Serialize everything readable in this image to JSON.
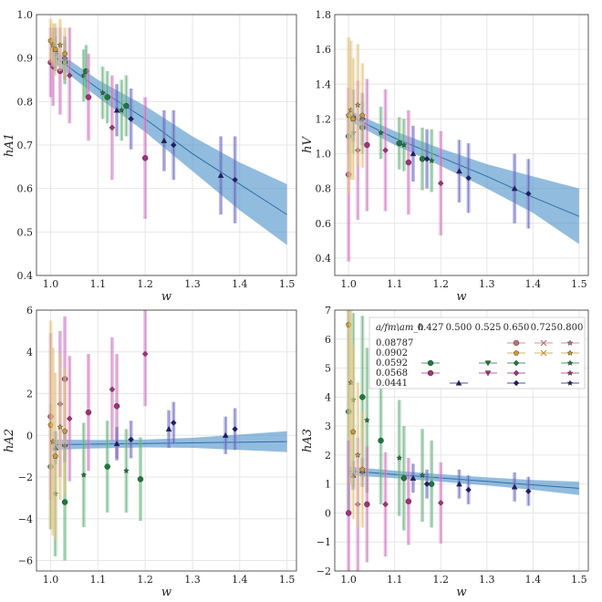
{
  "chart_data": [
    {
      "type": "scatter",
      "xlabel": "w",
      "ylabel": "hA1",
      "xlim": [
        0.97,
        1.52
      ],
      "ylim": [
        0.4,
        1.0
      ],
      "xticks": [
        "1.0",
        "1.1",
        "1.2",
        "1.3",
        "1.4",
        "1.5"
      ],
      "yticks": [
        "0.4",
        "0.5",
        "0.6",
        "0.7",
        "0.8",
        "0.9",
        "1.0"
      ],
      "band": {
        "x": [
          1.0,
          1.1,
          1.2,
          1.3,
          1.4,
          1.5
        ],
        "center": [
          0.91,
          0.83,
          0.76,
          0.68,
          0.61,
          0.54
        ],
        "lower": [
          0.895,
          0.81,
          0.73,
          0.64,
          0.55,
          0.47
        ],
        "upper": [
          0.925,
          0.85,
          0.79,
          0.72,
          0.66,
          0.61
        ]
      },
      "series": [
        {
          "name": "green",
          "color": "#1a7a3a",
          "x": [
            1.005,
            1.01,
            1.03,
            1.07,
            1.075,
            1.11,
            1.12,
            1.15,
            1.16
          ],
          "y": [
            0.92,
            0.91,
            0.89,
            0.86,
            0.87,
            0.82,
            0.81,
            0.78,
            0.79
          ],
          "err": [
            0.04,
            0.04,
            0.05,
            0.06,
            0.06,
            0.06,
            0.06,
            0.07,
            0.07
          ]
        },
        {
          "name": "magenta",
          "color": "#a3307a",
          "x": [
            1.0,
            1.005,
            1.02,
            1.04,
            1.08,
            1.13,
            1.2
          ],
          "y": [
            0.89,
            0.88,
            0.87,
            0.86,
            0.81,
            0.74,
            0.67
          ],
          "err": [
            0.08,
            0.09,
            0.1,
            0.11,
            0.1,
            0.12,
            0.14
          ]
        },
        {
          "name": "navy",
          "color": "#1e1e6e",
          "x": [
            1.01,
            1.03,
            1.14,
            1.17,
            1.24,
            1.26,
            1.36,
            1.39
          ],
          "y": [
            0.92,
            0.9,
            0.78,
            0.76,
            0.71,
            0.7,
            0.63,
            0.62
          ],
          "err": [
            0.05,
            0.05,
            0.06,
            0.07,
            0.07,
            0.08,
            0.09,
            0.1
          ]
        },
        {
          "name": "tan",
          "color": "#c89a3a",
          "x": [
            1.0,
            1.005,
            1.01,
            1.02,
            1.03
          ],
          "y": [
            0.94,
            0.93,
            0.92,
            0.93,
            0.91
          ],
          "err": [
            0.05,
            0.05,
            0.06,
            0.06,
            0.06
          ]
        }
      ]
    },
    {
      "type": "scatter",
      "xlabel": "w",
      "ylabel": "hV",
      "xlim": [
        0.97,
        1.52
      ],
      "ylim": [
        0.3,
        1.8
      ],
      "xticks": [
        "1.0",
        "1.1",
        "1.2",
        "1.3",
        "1.4",
        "1.5"
      ],
      "yticks": [
        "0.4",
        "0.6",
        "0.8",
        "1.0",
        "1.2",
        "1.4",
        "1.6",
        "1.8"
      ],
      "band": {
        "x": [
          1.0,
          1.1,
          1.2,
          1.3,
          1.4,
          1.5
        ],
        "center": [
          1.22,
          1.09,
          0.98,
          0.87,
          0.75,
          0.64
        ],
        "lower": [
          1.19,
          1.05,
          0.93,
          0.8,
          0.66,
          0.48
        ],
        "upper": [
          1.25,
          1.13,
          1.03,
          0.94,
          0.87,
          0.8
        ]
      },
      "series": [
        {
          "name": "green",
          "color": "#1a7a3a",
          "x": [
            1.0,
            1.01,
            1.03,
            1.07,
            1.11,
            1.12,
            1.16,
            1.18
          ],
          "y": [
            1.1,
            1.12,
            1.15,
            1.12,
            1.06,
            1.05,
            0.97,
            0.96
          ],
          "err": [
            0.1,
            0.12,
            0.15,
            0.15,
            0.15,
            0.15,
            0.18,
            0.18
          ]
        },
        {
          "name": "magenta",
          "color": "#a3307a",
          "x": [
            1.0,
            1.02,
            1.04,
            1.08,
            1.13,
            1.2
          ],
          "y": [
            0.88,
            1.02,
            1.05,
            1.02,
            0.95,
            0.83
          ],
          "err": [
            0.5,
            0.4,
            0.38,
            0.35,
            0.3,
            0.3
          ]
        },
        {
          "name": "navy",
          "color": "#1e1e6e",
          "x": [
            1.01,
            1.03,
            1.14,
            1.17,
            1.24,
            1.26,
            1.36,
            1.39
          ],
          "y": [
            1.22,
            1.2,
            1.0,
            0.97,
            0.9,
            0.86,
            0.8,
            0.77
          ],
          "err": [
            0.15,
            0.15,
            0.16,
            0.17,
            0.18,
            0.2,
            0.2,
            0.2
          ]
        },
        {
          "name": "tan",
          "color": "#c89a3a",
          "x": [
            1.0,
            1.005,
            1.01,
            1.02,
            1.03
          ],
          "y": [
            1.22,
            1.25,
            1.2,
            1.28,
            1.22
          ],
          "err": [
            0.45,
            0.4,
            0.35,
            0.35,
            0.3
          ]
        }
      ]
    },
    {
      "type": "scatter",
      "xlabel": "w",
      "ylabel": "hA2",
      "xlim": [
        0.97,
        1.52
      ],
      "ylim": [
        -6.5,
        6.0
      ],
      "xticks": [
        "1.0",
        "1.1",
        "1.2",
        "1.3",
        "1.4",
        "1.5"
      ],
      "yticks": [
        "−6",
        "−4",
        "−2",
        "0",
        "2",
        "4",
        "6"
      ],
      "band": {
        "x": [
          1.0,
          1.1,
          1.2,
          1.3,
          1.4,
          1.5
        ],
        "center": [
          -0.45,
          -0.42,
          -0.39,
          -0.36,
          -0.33,
          -0.3
        ],
        "lower": [
          -0.7,
          -0.62,
          -0.58,
          -0.6,
          -0.7,
          -0.8
        ],
        "upper": [
          -0.2,
          -0.22,
          -0.2,
          -0.12,
          0.04,
          0.2
        ]
      },
      "series": [
        {
          "name": "green",
          "color": "#1a7a3a",
          "x": [
            1.0,
            1.01,
            1.03,
            1.07,
            1.12,
            1.16,
            1.19
          ],
          "y": [
            -1.5,
            -2.8,
            -3.2,
            -1.9,
            -1.5,
            -1.7,
            -2.1
          ],
          "err": [
            3.0,
            3.0,
            2.8,
            2.5,
            2.2,
            2.0,
            2.0
          ]
        },
        {
          "name": "magenta",
          "color": "#a3307a",
          "x": [
            1.0,
            1.02,
            1.03,
            1.04,
            1.08,
            1.13,
            1.14,
            1.2
          ],
          "y": [
            0.9,
            1.5,
            2.7,
            0.8,
            1.1,
            2.2,
            1.4,
            3.9
          ],
          "err": [
            4.0,
            3.5,
            3.0,
            3.0,
            2.8,
            2.5,
            2.5,
            2.5
          ]
        },
        {
          "name": "navy",
          "color": "#1e1e6e",
          "x": [
            1.01,
            1.03,
            1.14,
            1.17,
            1.25,
            1.26,
            1.37,
            1.39
          ],
          "y": [
            -0.6,
            -0.5,
            -0.4,
            -0.2,
            0.3,
            0.6,
            0.0,
            0.3
          ],
          "err": [
            0.8,
            0.8,
            0.8,
            0.9,
            0.9,
            1.0,
            0.9,
            1.0
          ]
        },
        {
          "name": "tan",
          "color": "#c89a3a",
          "x": [
            1.0,
            1.005,
            1.01,
            1.02,
            1.03
          ],
          "y": [
            0.5,
            -0.3,
            -1.0,
            0.4,
            0.2
          ],
          "err": [
            5.0,
            4.5,
            4.0,
            3.5,
            3.0
          ]
        }
      ]
    },
    {
      "type": "scatter",
      "xlabel": "w",
      "ylabel": "hA3",
      "xlim": [
        0.97,
        1.52
      ],
      "ylim": [
        -2.0,
        7.0
      ],
      "xticks": [
        "1.0",
        "1.1",
        "1.2",
        "1.3",
        "1.4",
        "1.5"
      ],
      "yticks": [
        "−2",
        "−1",
        "0",
        "1",
        "2",
        "3",
        "4",
        "5",
        "6",
        "7"
      ],
      "band": {
        "x": [
          1.0,
          1.1,
          1.2,
          1.3,
          1.4,
          1.5
        ],
        "center": [
          1.45,
          1.33,
          1.21,
          1.09,
          0.97,
          0.85
        ],
        "lower": [
          1.3,
          1.2,
          1.08,
          0.95,
          0.8,
          0.62
        ],
        "upper": [
          1.6,
          1.46,
          1.34,
          1.23,
          1.14,
          1.08
        ]
      },
      "series": [
        {
          "name": "green",
          "color": "#1a7a3a",
          "x": [
            1.0,
            1.01,
            1.03,
            1.04,
            1.07,
            1.11,
            1.12,
            1.16,
            1.18
          ],
          "y": [
            3.5,
            3.9,
            4.0,
            3.2,
            2.5,
            1.9,
            1.2,
            1.3,
            1.0
          ],
          "err": [
            3.5,
            3.0,
            2.8,
            2.5,
            2.2,
            2.0,
            1.8,
            1.6,
            1.5
          ]
        },
        {
          "name": "magenta",
          "color": "#a3307a",
          "x": [
            1.0,
            1.02,
            1.04,
            1.08,
            1.13,
            1.2
          ],
          "y": [
            0.0,
            0.3,
            0.3,
            0.3,
            0.4,
            0.35
          ],
          "err": [
            2.5,
            2.3,
            2.0,
            1.8,
            1.5,
            1.4
          ]
        },
        {
          "name": "navy",
          "color": "#1e1e6e",
          "x": [
            1.01,
            1.03,
            1.14,
            1.17,
            1.24,
            1.26,
            1.36,
            1.39
          ],
          "y": [
            1.3,
            1.4,
            1.2,
            1.0,
            1.0,
            0.8,
            0.9,
            0.75
          ],
          "err": [
            0.5,
            0.5,
            0.5,
            0.5,
            0.5,
            0.5,
            0.5,
            0.5
          ]
        },
        {
          "name": "tan",
          "color": "#c89a3a",
          "x": [
            1.0,
            1.005,
            1.01,
            1.02,
            1.03
          ],
          "y": [
            6.5,
            4.5,
            2.8,
            2.0,
            1.5
          ],
          "err": [
            4.0,
            3.5,
            3.0,
            2.5,
            2.0
          ]
        }
      ]
    }
  ],
  "legend": {
    "header_label": "a/fm\\am_h",
    "header_values": [
      "0.427",
      "0.500",
      "0.525",
      "0.650",
      "0.725",
      "0.800"
    ],
    "rows": [
      {
        "a": "0.08787",
        "cells": [
          null,
          null,
          null,
          "circle",
          "x",
          "star"
        ]
      },
      {
        "a": "0.0902",
        "cells": [
          null,
          null,
          null,
          "pentagon",
          "x",
          "star"
        ]
      },
      {
        "a": "0.0592",
        "cells": [
          "circle",
          null,
          "tri-down",
          "diamond",
          null,
          "star"
        ]
      },
      {
        "a": "0.0568",
        "cells": [
          "circle",
          null,
          "tri-down",
          "diamond",
          null,
          "star"
        ]
      },
      {
        "a": "0.0441",
        "cells": [
          null,
          "tri-up",
          null,
          "diamond",
          null,
          "star"
        ]
      }
    ],
    "row_colors": [
      "#c0707a",
      "#c89a3a",
      "#1a7a3a",
      "#a3307a",
      "#1e1e6e"
    ]
  },
  "colors": {
    "band": "#4a90c8",
    "band_line": "#2f6ea8",
    "grid": "#e6e6e6",
    "axis": "#333333"
  }
}
